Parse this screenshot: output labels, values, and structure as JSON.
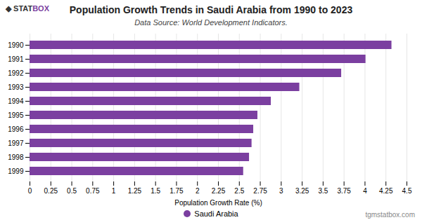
{
  "chart_data": {
    "type": "bar",
    "orientation": "horizontal",
    "title": "Population Growth Trends in Saudi Arabia from 1990 to 2023",
    "subtitle": "Data Source: World Development Indicators.",
    "xlabel": "Population Growth Rate (%)",
    "categories": [
      "1990",
      "1991",
      "1992",
      "1993",
      "1994",
      "1995",
      "1996",
      "1997",
      "1998",
      "1999"
    ],
    "series": [
      {
        "name": "Saudi Arabia",
        "color": "#7B3FA0",
        "values": [
          4.32,
          4.01,
          3.72,
          3.22,
          2.88,
          2.72,
          2.67,
          2.65,
          2.62,
          2.55
        ]
      }
    ],
    "xlim": [
      0,
      4.5
    ],
    "xticks": [
      0,
      0.25,
      0.5,
      0.75,
      1,
      1.25,
      1.5,
      1.75,
      2,
      2.25,
      2.5,
      2.75,
      3,
      3.25,
      3.5,
      3.75,
      4,
      4.25,
      4.5
    ],
    "grid": true,
    "legend": "bottom",
    "annotations": [
      {
        "text": "◆ STAT",
        "color": "#333333"
      },
      {
        "text": "BOX",
        "color": "#7B3FA0"
      },
      {
        "text": "tgmstatbox.com"
      }
    ]
  }
}
